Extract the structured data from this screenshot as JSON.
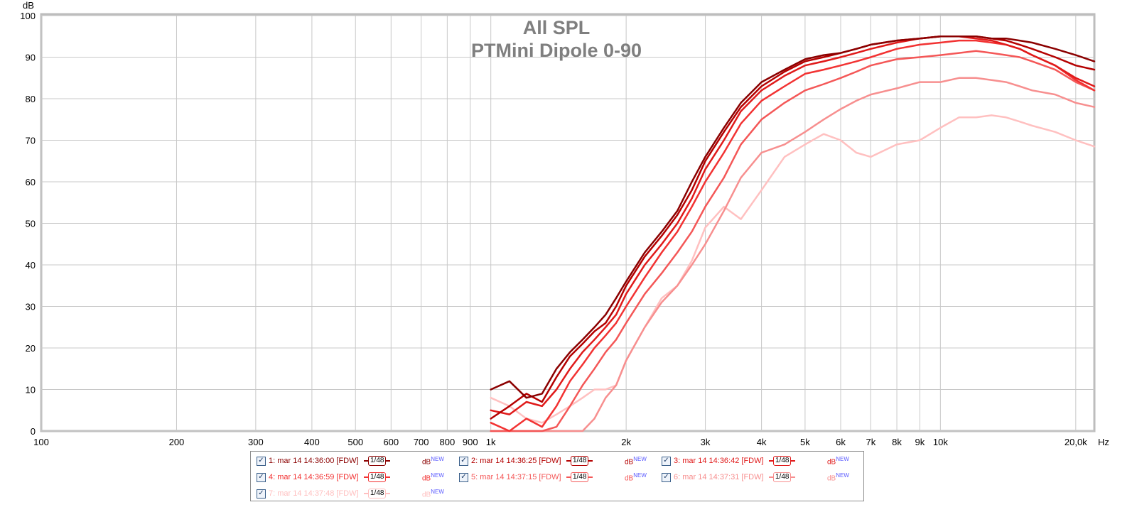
{
  "chart_data": {
    "type": "line",
    "title": "All SPL",
    "subtitle": "PTMini Dipole 0-90",
    "ylabel": "dB",
    "xunit": "Hz",
    "xscale": "log",
    "xlim": [
      100,
      22000
    ],
    "ylim": [
      0,
      100
    ],
    "grid": true,
    "x_ticks": [
      {
        "value": 100,
        "label": "100"
      },
      {
        "value": 200,
        "label": "200"
      },
      {
        "value": 300,
        "label": "300"
      },
      {
        "value": 400,
        "label": "400"
      },
      {
        "value": 500,
        "label": "500"
      },
      {
        "value": 600,
        "label": "600"
      },
      {
        "value": 700,
        "label": "700"
      },
      {
        "value": 800,
        "label": "800"
      },
      {
        "value": 900,
        "label": "900"
      },
      {
        "value": 1000,
        "label": "1k"
      },
      {
        "value": 2000,
        "label": "2k"
      },
      {
        "value": 3000,
        "label": "3k"
      },
      {
        "value": 4000,
        "label": "4k"
      },
      {
        "value": 5000,
        "label": "5k"
      },
      {
        "value": 6000,
        "label": "6k"
      },
      {
        "value": 7000,
        "label": "7k"
      },
      {
        "value": 8000,
        "label": "8k"
      },
      {
        "value": 9000,
        "label": "9k"
      },
      {
        "value": 10000,
        "label": "10k"
      },
      {
        "value": 20000,
        "label": "20,0k"
      }
    ],
    "y_ticks": [
      0,
      10,
      20,
      30,
      40,
      50,
      60,
      70,
      80,
      90,
      100
    ],
    "x": [
      1000,
      1100,
      1200,
      1300,
      1400,
      1500,
      1600,
      1700,
      1800,
      1900,
      2000,
      2200,
      2400,
      2600,
      2800,
      3000,
      3300,
      3600,
      4000,
      4500,
      5000,
      5500,
      6000,
      6500,
      7000,
      8000,
      9000,
      10000,
      11000,
      12000,
      13000,
      14000,
      15000,
      16000,
      18000,
      20000,
      22000
    ],
    "series": [
      {
        "name": "1: mar 14 14:36:00 [FDW]",
        "color": "#8b0000",
        "values": [
          10,
          12,
          8,
          9,
          15,
          19,
          22,
          25,
          28,
          32,
          36,
          43,
          48,
          53,
          60,
          66,
          73,
          79,
          84,
          87,
          89.5,
          90.5,
          91,
          92,
          93,
          94,
          94.5,
          95,
          95,
          95,
          94.5,
          94.5,
          94,
          93.5,
          92,
          90.5,
          89
        ]
      },
      {
        "name": "2: mar 14 14:36:25 [FDW]",
        "color": "#b40000",
        "values": [
          3,
          6,
          9,
          7,
          13,
          18,
          21,
          24,
          26,
          30,
          35,
          42,
          47,
          52,
          58,
          65,
          72,
          78,
          83,
          86.5,
          89,
          90,
          91,
          92,
          93,
          94,
          94.5,
          95,
          95,
          95,
          94.5,
          94,
          93,
          92,
          90,
          88,
          87
        ]
      },
      {
        "name": "3: mar 14 14:36:42 [FDW]",
        "color": "#e01a1a",
        "values": [
          5,
          4,
          7,
          6,
          10,
          15,
          19,
          22,
          25,
          28,
          33,
          40,
          45,
          50,
          56,
          63,
          70,
          77,
          82,
          85.5,
          88,
          89,
          90,
          91,
          92,
          93.5,
          94.5,
          95,
          95,
          94.5,
          94,
          93,
          92,
          90.5,
          88,
          85,
          83
        ]
      },
      {
        "name": "4: mar 14 14:36:59 [FDW]",
        "color": "#f23232",
        "values": [
          2,
          0,
          3,
          1,
          6,
          12,
          16,
          20,
          23,
          26,
          30,
          37,
          43,
          48,
          54,
          60,
          67,
          74,
          79.5,
          83,
          86,
          87,
          88,
          89,
          90,
          92,
          93,
          93.5,
          94,
          94,
          93.5,
          93,
          92,
          90.5,
          88,
          84.5,
          82
        ]
      },
      {
        "name": "5: mar 14 14:37:15 [FDW]",
        "color": "#f45757",
        "values": [
          0,
          0,
          0,
          0,
          1,
          6,
          11,
          15,
          19,
          22,
          26,
          33,
          38,
          43,
          48,
          54,
          61,
          69,
          75,
          79,
          82,
          83.5,
          85,
          86.5,
          88,
          89.5,
          90,
          90.5,
          91,
          91.5,
          91,
          90.5,
          90,
          89,
          87,
          84,
          82
        ]
      },
      {
        "name": "6: mar 14 14:37:31 [FDW]",
        "color": "#f78f8f",
        "values": [
          0,
          0,
          0,
          0,
          0,
          0,
          0,
          3,
          8,
          11,
          17,
          25,
          31,
          35,
          40,
          45,
          53,
          61,
          67,
          69,
          72,
          75,
          77.5,
          79.5,
          81,
          82.5,
          84,
          84,
          85,
          85,
          84.5,
          84,
          83,
          82,
          81,
          79,
          78
        ]
      },
      {
        "name": "7: mar 14 14:37:48 [FDW]",
        "color": "#ffc0c0",
        "values": [
          8,
          6,
          3,
          2,
          4,
          6,
          8,
          10,
          10,
          11,
          17,
          25,
          32,
          35,
          41,
          49,
          54,
          51,
          58,
          66,
          69,
          71.5,
          70,
          67,
          66,
          69,
          70,
          73,
          75.5,
          75.5,
          76,
          75.5,
          74.5,
          73.5,
          72,
          70,
          68.5
        ]
      }
    ],
    "legend_position": "bottom-center"
  },
  "legend": {
    "smoothing_label": "1/48",
    "unit_label": "dB",
    "unit_badge": "NEW",
    "checked_mark": "✓"
  }
}
